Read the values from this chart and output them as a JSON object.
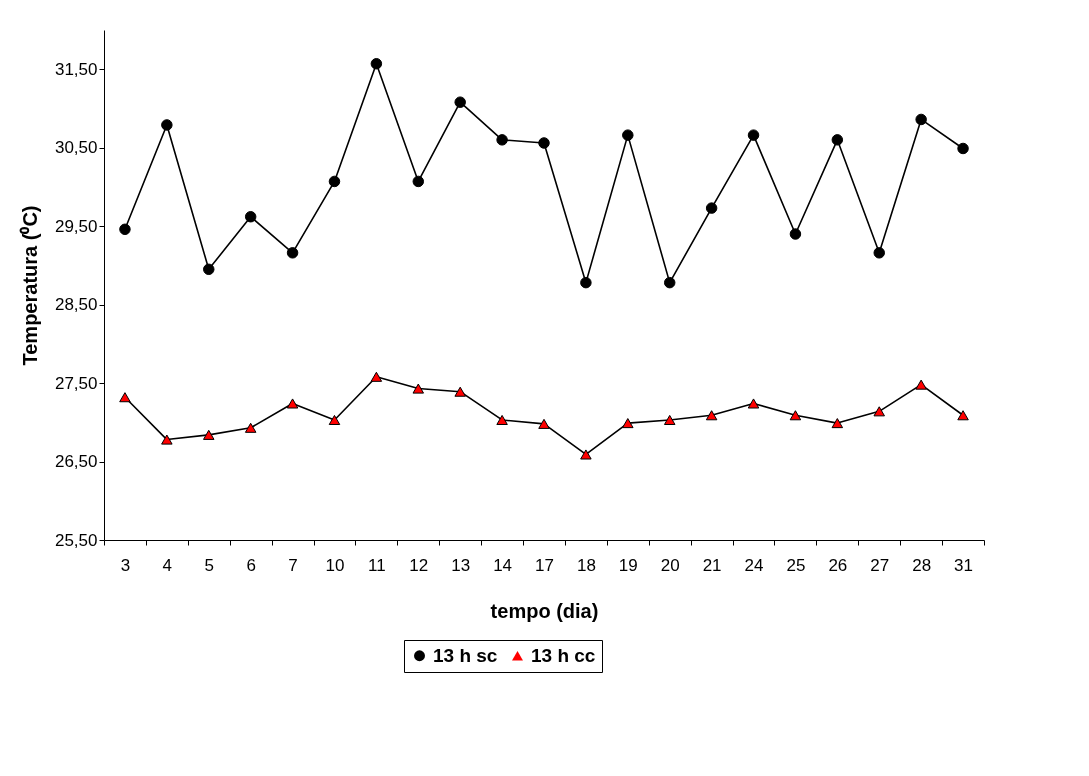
{
  "chart_data": {
    "type": "line",
    "xlabel": "tempo (dia)",
    "ylabel": "Temperatura (⁰C)",
    "categories": [
      "3",
      "4",
      "5",
      "6",
      "7",
      "10",
      "11",
      "12",
      "13",
      "14",
      "17",
      "18",
      "19",
      "20",
      "21",
      "24",
      "25",
      "26",
      "27",
      "28",
      "31"
    ],
    "series": [
      {
        "name": "13 h sc",
        "color": "#000000",
        "marker": "circle",
        "values": [
          29.46,
          30.79,
          28.95,
          29.62,
          29.16,
          30.07,
          31.57,
          30.07,
          31.08,
          30.6,
          30.56,
          28.78,
          30.66,
          28.78,
          29.73,
          30.66,
          29.4,
          30.6,
          29.16,
          30.86,
          30.49
        ]
      },
      {
        "name": "13 h cc",
        "color": "#ff0000",
        "marker": "triangle",
        "values": [
          27.32,
          26.78,
          26.84,
          26.93,
          27.24,
          27.03,
          27.58,
          27.43,
          27.39,
          27.03,
          26.98,
          26.59,
          26.99,
          27.03,
          27.09,
          27.24,
          27.09,
          26.99,
          27.14,
          27.48,
          27.09
        ]
      }
    ],
    "ylim": [
      25.5,
      32
    ],
    "yticks": [
      {
        "value": 25.5,
        "label": "25,50"
      },
      {
        "value": 26.5,
        "label": "26,50"
      },
      {
        "value": 27.5,
        "label": "27,50"
      },
      {
        "value": 28.5,
        "label": "28,50"
      },
      {
        "value": 29.5,
        "label": "29,50"
      },
      {
        "value": 30.5,
        "label": "30,50"
      },
      {
        "value": 31.5,
        "label": "31,50"
      }
    ],
    "grid": false,
    "legend": "bottom",
    "line_style": "solid"
  }
}
